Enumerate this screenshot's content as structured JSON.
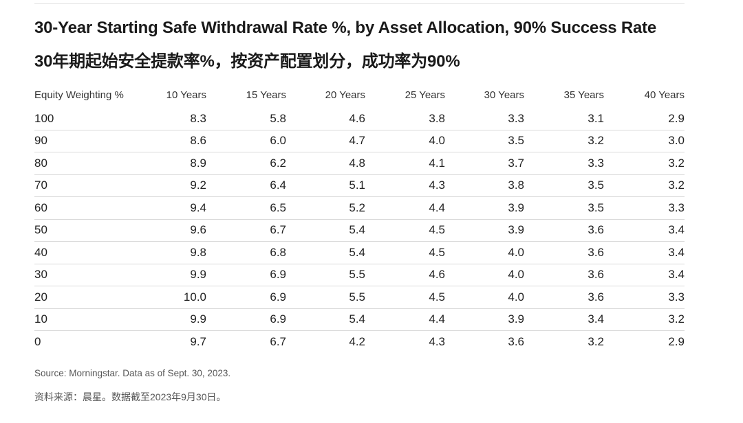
{
  "title_en": "30-Year Starting Safe Withdrawal Rate %, by Asset Allocation, 90% Success Rate",
  "title_zh": "30年期起始安全提款率%，按资产配置划分，成功率为90%",
  "source_en": "Source: Morningstar. Data as of Sept. 30, 2023.",
  "source_zh": "资料来源：晨星。数据截至2023年9月30日。",
  "chart_data": {
    "type": "table",
    "columns": [
      "Equity Weighting %",
      "10 Years",
      "15 Years",
      "20 Years",
      "25 Years",
      "30 Years",
      "35 Years",
      "40 Years"
    ],
    "rows": [
      [
        "100",
        "8.3",
        "5.8",
        "4.6",
        "3.8",
        "3.3",
        "3.1",
        "2.9"
      ],
      [
        "90",
        "8.6",
        "6.0",
        "4.7",
        "4.0",
        "3.5",
        "3.2",
        "3.0"
      ],
      [
        "80",
        "8.9",
        "6.2",
        "4.8",
        "4.1",
        "3.7",
        "3.3",
        "3.2"
      ],
      [
        "70",
        "9.2",
        "6.4",
        "5.1",
        "4.3",
        "3.8",
        "3.5",
        "3.2"
      ],
      [
        "60",
        "9.4",
        "6.5",
        "5.2",
        "4.4",
        "3.9",
        "3.5",
        "3.3"
      ],
      [
        "50",
        "9.6",
        "6.7",
        "5.4",
        "4.5",
        "3.9",
        "3.6",
        "3.4"
      ],
      [
        "40",
        "9.8",
        "6.8",
        "5.4",
        "4.5",
        "4.0",
        "3.6",
        "3.4"
      ],
      [
        "30",
        "9.9",
        "6.9",
        "5.5",
        "4.6",
        "4.0",
        "3.6",
        "3.4"
      ],
      [
        "20",
        "10.0",
        "6.9",
        "5.5",
        "4.5",
        "4.0",
        "3.6",
        "3.3"
      ],
      [
        "10",
        "9.9",
        "6.9",
        "5.4",
        "4.4",
        "3.9",
        "3.4",
        "3.2"
      ],
      [
        "0",
        "9.7",
        "6.7",
        "4.2",
        "4.3",
        "3.6",
        "3.2",
        "2.9"
      ]
    ]
  }
}
